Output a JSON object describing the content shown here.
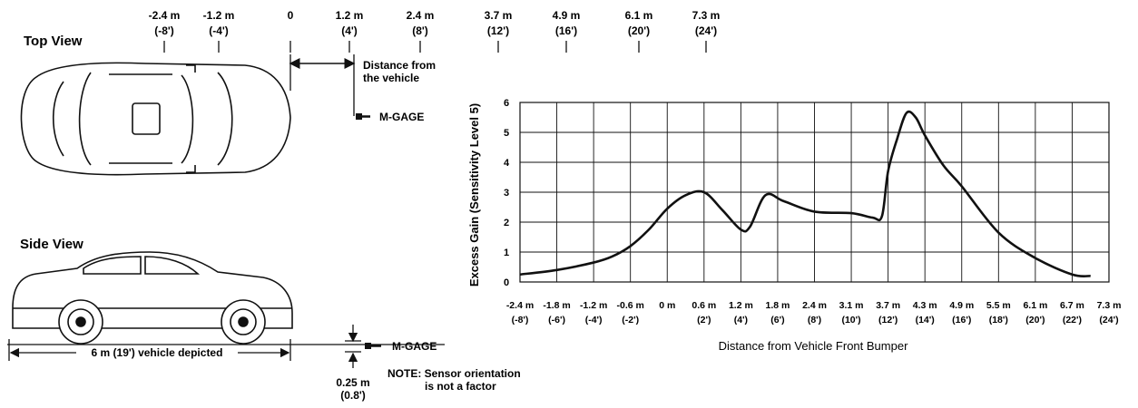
{
  "top_view": {
    "title": "Top View",
    "scale": [
      {
        "m": "-2.4 m",
        "ft": "(-8')"
      },
      {
        "m": "-1.2 m",
        "ft": "(-4')"
      },
      {
        "m": "0",
        "ft": ""
      },
      {
        "m": "1.2 m",
        "ft": "(4')"
      },
      {
        "m": "2.4 m",
        "ft": "(8')"
      },
      {
        "m": "3.7 m",
        "ft": "(12')"
      },
      {
        "m": "4.9 m",
        "ft": "(16')"
      },
      {
        "m": "6.1 m",
        "ft": "(20')"
      },
      {
        "m": "7.3 m",
        "ft": "(24')"
      }
    ],
    "distance_label_1": "Distance from",
    "distance_label_2": "the vehicle",
    "sensor_label": "M-GAGE"
  },
  "side_view": {
    "title": "Side View",
    "vehicle_length_label": "6 m (19') vehicle depicted",
    "sensor_label": "M-GAGE",
    "height_m": "0.25 m",
    "height_ft": "(0.8')",
    "note_1": "NOTE: Sensor orientation",
    "note_2": "is not a factor"
  },
  "chart_data": {
    "type": "line",
    "ylabel": "Excess Gain (Sensitivity Level 5)",
    "xlabel": "Distance from Vehicle Front Bumper",
    "ylim": [
      0,
      6
    ],
    "yticks": [
      "0",
      "1",
      "2",
      "3",
      "4",
      "5",
      "6"
    ],
    "xlim": [
      -2.4,
      7.3
    ],
    "xticks": [
      {
        "m": "-2.4 m",
        "ft": "(-8')",
        "v": -2.4
      },
      {
        "m": "-1.8 m",
        "ft": "(-6')",
        "v": -1.8
      },
      {
        "m": "-1.2 m",
        "ft": "(-4')",
        "v": -1.2
      },
      {
        "m": "-0.6 m",
        "ft": "(-2')",
        "v": -0.6
      },
      {
        "m": "0 m",
        "ft": "",
        "v": 0
      },
      {
        "m": "0.6 m",
        "ft": "(2')",
        "v": 0.6
      },
      {
        "m": "1.2 m",
        "ft": "(4')",
        "v": 1.2
      },
      {
        "m": "1.8 m",
        "ft": "(6')",
        "v": 1.8
      },
      {
        "m": "2.4 m",
        "ft": "(8')",
        "v": 2.4
      },
      {
        "m": "3.1 m",
        "ft": "(10')",
        "v": 3.1
      },
      {
        "m": "3.7 m",
        "ft": "(12')",
        "v": 3.7
      },
      {
        "m": "4.3 m",
        "ft": "(14')",
        "v": 4.3
      },
      {
        "m": "4.9 m",
        "ft": "(16')",
        "v": 4.9
      },
      {
        "m": "5.5 m",
        "ft": "(18')",
        "v": 5.5
      },
      {
        "m": "6.1 m",
        "ft": "(20')",
        "v": 6.1
      },
      {
        "m": "6.7 m",
        "ft": "(22')",
        "v": 6.7
      },
      {
        "m": "7.3 m",
        "ft": "(24')",
        "v": 7.3
      }
    ],
    "grid": true,
    "series": [
      {
        "x": [
          -2.4,
          -1.8,
          -1.2,
          -0.9,
          -0.6,
          -0.3,
          0,
          0.3,
          0.6,
          0.9,
          1.2,
          1.35,
          1.6,
          1.9,
          2.4,
          3.1,
          3.45,
          3.6,
          3.7,
          3.85,
          4.0,
          4.15,
          4.3,
          4.6,
          4.9,
          5.5,
          6.1,
          6.7,
          7.0
        ],
        "y": [
          0.25,
          0.4,
          0.65,
          0.85,
          1.2,
          1.75,
          2.45,
          2.9,
          3.0,
          2.4,
          1.75,
          1.85,
          2.9,
          2.7,
          2.35,
          2.3,
          2.15,
          2.2,
          3.7,
          4.8,
          5.65,
          5.5,
          4.9,
          3.9,
          3.2,
          1.65,
          0.8,
          0.25,
          0.2
        ]
      }
    ]
  }
}
